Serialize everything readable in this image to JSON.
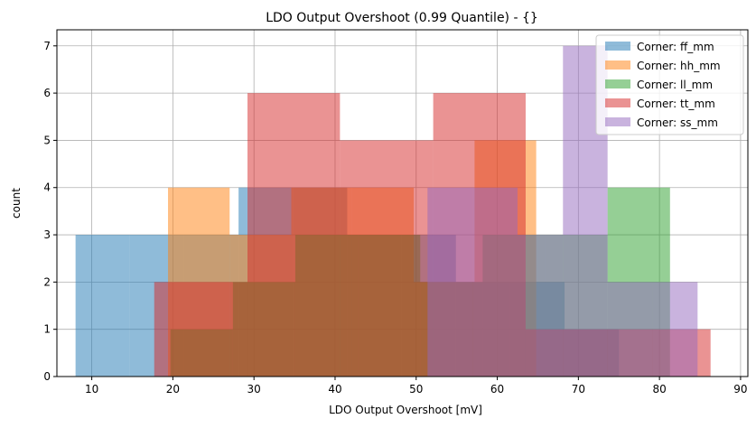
{
  "chart_data": {
    "type": "histogram",
    "title": "LDO Output Overshoot (0.99 Quantile) - {}",
    "xlabel": "LDO Output Overshoot [mV]",
    "ylabel": "count",
    "xlim": [
      5.7,
      90.9
    ],
    "ylim": [
      0,
      7.34
    ],
    "xticks": [
      10,
      20,
      30,
      40,
      50,
      60,
      70,
      80,
      90
    ],
    "yticks": [
      0,
      1,
      2,
      3,
      4,
      5,
      6,
      7
    ],
    "grid": true,
    "legend_position": "top-right",
    "alpha": 0.5,
    "series": [
      {
        "name": "Corner: ff_mm",
        "color": "#1f77b4",
        "bin_edges": [
          8.0,
          14.7,
          21.4,
          28.1,
          34.8,
          41.5,
          48.2,
          54.9,
          61.6,
          68.3,
          75.0
        ],
        "counts": [
          3,
          3,
          3,
          4,
          4,
          3,
          3,
          2,
          2,
          1
        ]
      },
      {
        "name": "Corner: hh_mm",
        "color": "#ff7f0e",
        "bin_edges": [
          19.4,
          27.0,
          34.6,
          42.1,
          49.7,
          57.2,
          64.8
        ],
        "counts": [
          4,
          3,
          4,
          4,
          2,
          5
        ]
      },
      {
        "name": "Corner: ll_mm",
        "color": "#2ca02c",
        "bin_edges": [
          19.7,
          27.4,
          35.1,
          42.8,
          50.5,
          58.2,
          65.9,
          73.6,
          81.3
        ],
        "counts": [
          1,
          2,
          3,
          3,
          2,
          3,
          3,
          4
        ]
      },
      {
        "name": "Corner: tt_mm",
        "color": "#d62728",
        "bin_edges": [
          17.7,
          29.2,
          40.6,
          52.1,
          63.5,
          74.9,
          86.3
        ],
        "counts": [
          2,
          6,
          5,
          6,
          1,
          1
        ]
      },
      {
        "name": "Corner: ss_mm",
        "color": "#9467bd",
        "bin_edges": [
          51.4,
          57.0,
          62.5,
          68.1,
          73.6,
          79.2,
          84.7
        ],
        "counts": [
          4,
          4,
          3,
          7,
          2,
          2
        ]
      }
    ]
  }
}
